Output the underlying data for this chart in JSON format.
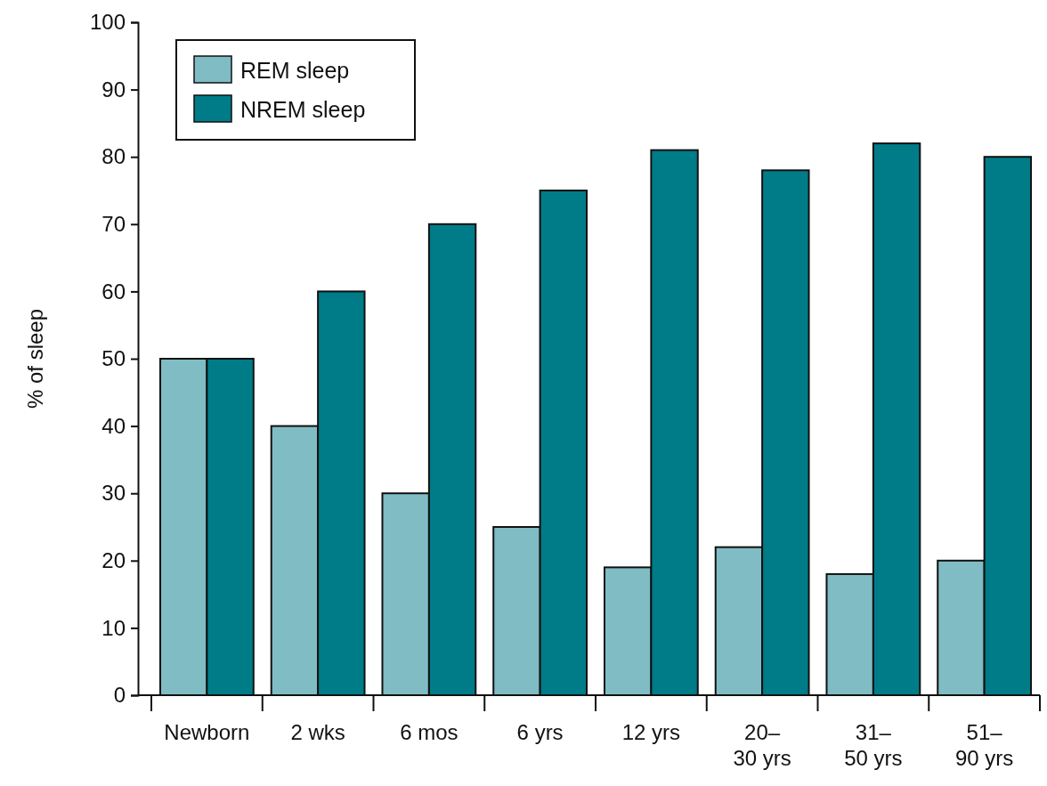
{
  "chart_data": {
    "type": "bar",
    "ylabel": "% of sleep",
    "categories": [
      "Newborn",
      "2 wks",
      "6 mos",
      "6 yrs",
      "12 yrs",
      "20–\n30 yrs",
      "31–\n50 yrs",
      "51–\n90 yrs"
    ],
    "series": [
      {
        "name": "REM sleep",
        "color": "#80bcc4",
        "values": [
          50,
          40,
          30,
          25,
          19,
          22,
          18,
          20
        ]
      },
      {
        "name": "NREM sleep",
        "color": "#007c88",
        "values": [
          50,
          60,
          70,
          75,
          81,
          78,
          82,
          80
        ]
      }
    ],
    "ylim": [
      0,
      100
    ],
    "yticks": [
      0,
      10,
      20,
      30,
      40,
      50,
      60,
      70,
      80,
      90,
      100
    ],
    "grid": false,
    "legend": "top left"
  }
}
